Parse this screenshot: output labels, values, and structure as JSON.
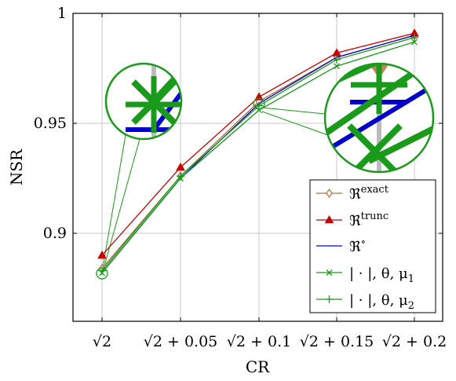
{
  "chart_data": {
    "type": "line",
    "xlabel": "CR",
    "ylabel": "NSR",
    "categories": [
      "√2",
      "√2 + 0.05",
      "√2 + 0.1",
      "√2 + 0.15",
      "√2 + 0.2"
    ],
    "ylim": [
      0.86,
      1.0
    ],
    "yticks": [
      "0.9",
      "0.95",
      "1"
    ],
    "ytick_values": [
      0.9,
      0.95,
      1.0
    ],
    "grid": true,
    "legend_position": "bottom-right",
    "series": [
      {
        "name": "𝔑exact",
        "color": "#b07040",
        "marker": "diamond",
        "values": [
          0.884,
          0.926,
          0.96,
          0.98,
          0.99
        ]
      },
      {
        "name": "𝔑trunc",
        "color": "#cc0000",
        "marker": "triangle",
        "values": [
          0.89,
          0.93,
          0.962,
          0.982,
          0.991
        ]
      },
      {
        "name": "𝔑°",
        "color": "#0000cc",
        "marker": "none",
        "values": [
          0.882,
          0.925,
          0.959,
          0.98,
          0.99
        ]
      },
      {
        "name": "| · |, θ, μ1",
        "color": "#1a9a1a",
        "marker": "x",
        "values": [
          0.882,
          0.925,
          0.956,
          0.976,
          0.987
        ]
      },
      {
        "name": "| · |, θ, μ2",
        "color": "#1a9a1a",
        "marker": "plus",
        "values": [
          0.883,
          0.926,
          0.958,
          0.979,
          0.989
        ]
      }
    ],
    "legend_labels": [
      {
        "base": "ℜ",
        "sup": "exact"
      },
      {
        "base": "ℜ",
        "sup": "trunc"
      },
      {
        "base": "ℜ",
        "sup": "∘"
      },
      {
        "base": "| · |, θ, μ",
        "sub": "1"
      },
      {
        "base": "| · |, θ, μ",
        "sub": "2"
      }
    ]
  }
}
